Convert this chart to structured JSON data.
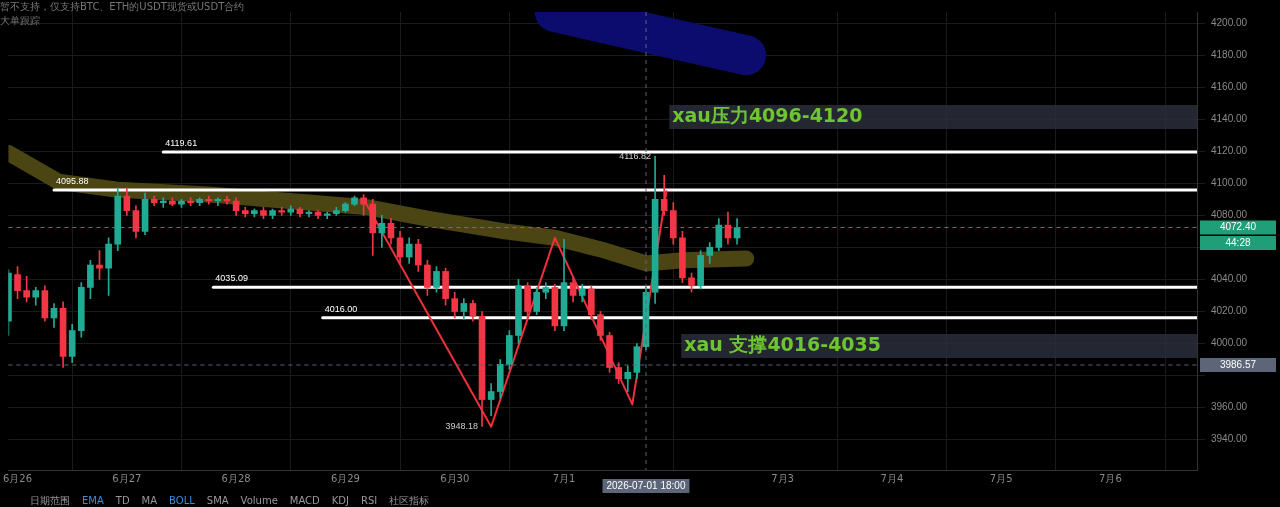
{
  "chart_data": {
    "type": "candlestick",
    "x": [
      "2026-06-25T22:00",
      "2026-06-26T00:00",
      "2026-06-26T02:00",
      "2026-06-26T04:00",
      "2026-06-26T06:00",
      "2026-06-26T08:00",
      "2026-06-26T10:00",
      "2026-06-26T12:00",
      "2026-06-26T14:00",
      "2026-06-26T16:00",
      "2026-06-26T18:00",
      "2026-06-26T20:00",
      "2026-06-26T22:00",
      "2026-06-27T00:00",
      "2026-06-27T02:00",
      "2026-06-27T04:00",
      "2026-06-27T06:00",
      "2026-06-27T08:00",
      "2026-06-27T10:00",
      "2026-06-27T12:00",
      "2026-06-27T14:00",
      "2026-06-27T16:00",
      "2026-06-27T18:00",
      "2026-06-27T20:00",
      "2026-06-27T22:00",
      "2026-06-28T00:00",
      "2026-06-28T02:00",
      "2026-06-28T04:00",
      "2026-06-28T06:00",
      "2026-06-28T08:00",
      "2026-06-28T10:00",
      "2026-06-28T12:00",
      "2026-06-28T14:00",
      "2026-06-28T16:00",
      "2026-06-28T18:00",
      "2026-06-28T20:00",
      "2026-06-28T22:00",
      "2026-06-29T00:00",
      "2026-06-29T02:00",
      "2026-06-29T04:00",
      "2026-06-29T06:00",
      "2026-06-29T08:00",
      "2026-06-29T10:00",
      "2026-06-29T12:00",
      "2026-06-29T14:00",
      "2026-06-29T16:00",
      "2026-06-29T18:00",
      "2026-06-29T20:00",
      "2026-06-29T22:00",
      "2026-06-30T00:00",
      "2026-06-30T02:00",
      "2026-06-30T04:00",
      "2026-06-30T06:00",
      "2026-06-30T08:00",
      "2026-06-30T10:00",
      "2026-06-30T12:00",
      "2026-06-30T14:00",
      "2026-06-30T16:00",
      "2026-06-30T18:00",
      "2026-06-30T20:00",
      "2026-06-30T22:00",
      "2026-07-01T00:00",
      "2026-07-01T02:00",
      "2026-07-01T04:00",
      "2026-07-01T06:00",
      "2026-07-01T08:00",
      "2026-07-01T10:00",
      "2026-07-01T12:00",
      "2026-07-01T14:00",
      "2026-07-01T16:00",
      "2026-07-01T18:00",
      "2026-07-01T20:00",
      "2026-07-01T22:00",
      "2026-07-02T00:00",
      "2026-07-02T02:00",
      "2026-07-02T04:00",
      "2026-07-02T06:00",
      "2026-07-02T08:00",
      "2026-07-02T10:00",
      "2026-07-02T12:00",
      "2026-07-02T14:00"
    ],
    "ohlc": [
      [
        4014,
        4046,
        4005,
        4044
      ],
      [
        4043,
        4048,
        4028,
        4033
      ],
      [
        4033,
        4042,
        4026,
        4029
      ],
      [
        4029,
        4035,
        4024,
        4033
      ],
      [
        4033,
        4036,
        4014,
        4016
      ],
      [
        4016,
        4025,
        4010,
        4022
      ],
      [
        4022,
        4026,
        3985,
        3992
      ],
      [
        3992,
        4012,
        3988,
        4008
      ],
      [
        4008,
        4038,
        4004,
        4035
      ],
      [
        4035,
        4052,
        4028,
        4049
      ],
      [
        4049,
        4058,
        4040,
        4047
      ],
      [
        4047,
        4066,
        4030,
        4062
      ],
      [
        4062,
        4097,
        4058,
        4092
      ],
      [
        4092,
        4097,
        4080,
        4083
      ],
      [
        4083,
        4086,
        4066,
        4070
      ],
      [
        4070,
        4094,
        4068,
        4090
      ],
      [
        4090,
        4092,
        4086,
        4088
      ],
      [
        4088,
        4091,
        4085,
        4089
      ],
      [
        4089,
        4091,
        4086,
        4087
      ],
      [
        4087,
        4090,
        4085,
        4089
      ],
      [
        4089,
        4091,
        4086,
        4088
      ],
      [
        4088,
        4091,
        4086,
        4090
      ],
      [
        4090,
        4092,
        4087,
        4089
      ],
      [
        4089,
        4091,
        4086,
        4090
      ],
      [
        4090,
        4092,
        4087,
        4089
      ],
      [
        4089,
        4091,
        4080,
        4083
      ],
      [
        4083,
        4085,
        4079,
        4081
      ],
      [
        4081,
        4084,
        4079,
        4083
      ],
      [
        4083,
        4085,
        4078,
        4080
      ],
      [
        4080,
        4084,
        4078,
        4083
      ],
      [
        4083,
        4085,
        4080,
        4082
      ],
      [
        4082,
        4086,
        4080,
        4084
      ],
      [
        4084,
        4085,
        4079,
        4081
      ],
      [
        4081,
        4083,
        4079,
        4082
      ],
      [
        4082,
        4083,
        4078,
        4080
      ],
      [
        4080,
        4082,
        4078,
        4081
      ],
      [
        4081,
        4085,
        4080,
        4083
      ],
      [
        4083,
        4088,
        4082,
        4087
      ],
      [
        4087,
        4092,
        4086,
        4091
      ],
      [
        4091,
        4093,
        4080,
        4087
      ],
      [
        4087,
        4090,
        4055,
        4069
      ],
      [
        4069,
        4080,
        4060,
        4075
      ],
      [
        4075,
        4078,
        4062,
        4066
      ],
      [
        4066,
        4070,
        4050,
        4054
      ],
      [
        4054,
        4066,
        4050,
        4062
      ],
      [
        4062,
        4065,
        4045,
        4049
      ],
      [
        4049,
        4052,
        4030,
        4035
      ],
      [
        4035,
        4048,
        4032,
        4045
      ],
      [
        4045,
        4047,
        4024,
        4028
      ],
      [
        4028,
        4032,
        4016,
        4020
      ],
      [
        4020,
        4028,
        4015,
        4025
      ],
      [
        4025,
        4027,
        4014,
        4017
      ],
      [
        4017,
        4020,
        3948.18,
        3965
      ],
      [
        3965,
        3975,
        3955,
        3970
      ],
      [
        3970,
        3990,
        3966,
        3987
      ],
      [
        3987,
        4008,
        3984,
        4005
      ],
      [
        4005,
        4040,
        4000,
        4036
      ],
      [
        4036,
        4038,
        4016,
        4020
      ],
      [
        4020,
        4035,
        4018,
        4032
      ],
      [
        4032,
        4038,
        4028,
        4035
      ],
      [
        4035,
        4037,
        4008,
        4011
      ],
      [
        4011,
        4065,
        4008,
        4038
      ],
      [
        4038,
        4041,
        4026,
        4030
      ],
      [
        4030,
        4037,
        4026,
        4034
      ],
      [
        4034,
        4036,
        4015,
        4018
      ],
      [
        4018,
        4020,
        4002,
        4005
      ],
      [
        4005,
        4007,
        3982,
        3985
      ],
      [
        3985,
        3988,
        3975,
        3978
      ],
      [
        3978,
        3986,
        3970,
        3982
      ],
      [
        3982,
        4000,
        3978,
        3998
      ],
      [
        3998,
        4035,
        3996,
        4032
      ],
      [
        4032,
        4116.82,
        4025,
        4090
      ],
      [
        4090,
        4105,
        4080,
        4083
      ],
      [
        4083,
        4088,
        4062,
        4066
      ],
      [
        4066,
        4070,
        4038,
        4041
      ],
      [
        4041,
        4044,
        4032,
        4036
      ],
      [
        4036,
        4058,
        4034,
        4055
      ],
      [
        4055,
        4063,
        4050,
        4060
      ],
      [
        4060,
        4078,
        4058,
        4074
      ],
      [
        4074,
        4082,
        4062,
        4066
      ],
      [
        4066,
        4078,
        4062,
        4072.4
      ]
    ],
    "series": [
      {
        "type": "line",
        "color": "#4a4512",
        "x": [
          "2026-06-25T22:00",
          "2026-06-26T09:00",
          "2026-06-26T22:00",
          "2026-06-27T18:00",
          "2026-06-28T16:00",
          "2026-06-29T05:00",
          "2026-06-29T18:00",
          "2026-06-30T11:00",
          "2026-06-30T22:00",
          "2026-07-01T09:00",
          "2026-07-01T18:00",
          "2026-07-02T02:00",
          "2026-07-02T16:00"
        ],
        "values": [
          4119,
          4101,
          4096,
          4093,
          4088,
          4085,
          4078,
          4070,
          4066,
          4058,
          4050,
          4052,
          4053
        ]
      },
      {
        "type": "line",
        "color": "#0c0c6e",
        "x": [
          "2026-06-30T22:00",
          "2026-07-01T18:00",
          "2026-07-02T16:00"
        ],
        "values": [
          4207,
          4194,
          4180
        ]
      },
      {
        "type": "line",
        "color": "#f0303a",
        "x": [
          "2026-06-29T04:00",
          "2026-06-30T08:00",
          "2026-06-30T22:00",
          "2026-07-01T15:00",
          "2026-07-01T22:30"
        ],
        "values": [
          4090,
          3948,
          4066,
          3962,
          4095
        ]
      },
      {
        "type": "line",
        "name": "4119.61",
        "color": "#ffffff",
        "x": [
          "2026-06-27T08:00",
          "2026-07-06T19:00"
        ],
        "values": [
          4119.61,
          4119.61
        ]
      },
      {
        "type": "line",
        "name": "4095.88",
        "color": "#ffffff",
        "x": [
          "2026-06-26T08:00",
          "2026-07-06T19:00"
        ],
        "values": [
          4095.88,
          4095.88
        ]
      },
      {
        "type": "line",
        "name": "4035.09",
        "color": "#ffffff",
        "x": [
          "2026-06-27T19:00",
          "2026-07-06T19:00"
        ],
        "values": [
          4035.09,
          4035.09
        ]
      },
      {
        "type": "line",
        "name": "4016.00",
        "color": "#ffffff",
        "x": [
          "2026-06-28T19:00",
          "2026-07-06T19:00"
        ],
        "values": [
          4016.0,
          4016.0
        ]
      }
    ],
    "xlim": [
      "2026-06-25T22:00",
      "2026-07-06T19:00"
    ],
    "ylim": [
      3921,
      4207
    ],
    "xticks": [
      {
        "value": "2026-06-26T00:00",
        "label": "6月26"
      },
      {
        "value": "2026-06-27T00:00",
        "label": "6月27"
      },
      {
        "value": "2026-06-28T00:00",
        "label": "6月28"
      },
      {
        "value": "2026-06-29T00:00",
        "label": "6月29"
      },
      {
        "value": "2026-06-30T00:00",
        "label": "6月30"
      },
      {
        "value": "2026-07-01T00:00",
        "label": "7月1"
      },
      {
        "value": "2026-07-03T00:00",
        "label": "7月3"
      },
      {
        "value": "2026-07-04T00:00",
        "label": "7月4"
      },
      {
        "value": "2026-07-05T00:00",
        "label": "7月5"
      },
      {
        "value": "2026-07-06T00:00",
        "label": "7月6"
      }
    ],
    "yticks": [
      {
        "value": 3940,
        "label": "3940.00"
      },
      {
        "value": 3960,
        "label": "3960.00"
      },
      {
        "value": 3980,
        "label": null
      },
      {
        "value": 4000,
        "label": "4000.00"
      },
      {
        "value": 4020,
        "label": "4020.00"
      },
      {
        "value": 4040,
        "label": "4040.00"
      },
      {
        "value": 4060,
        "label": null
      },
      {
        "value": 4080,
        "label": "4080.00"
      },
      {
        "value": 4100,
        "label": "4100.00"
      },
      {
        "value": 4120,
        "label": "4120.00"
      },
      {
        "value": 4140,
        "label": "4140.00"
      },
      {
        "value": 4160,
        "label": "4160.00"
      },
      {
        "value": 4180,
        "label": "4180.00"
      },
      {
        "value": 4200,
        "label": "4200.00"
      }
    ],
    "grid": true,
    "legend": false,
    "bands": [
      {
        "axis": "y",
        "from": 4134,
        "to": 4149,
        "label": "xau压力4096-4120",
        "color": "#2a2e39"
      },
      {
        "axis": "y",
        "from": 3991,
        "to": 4006,
        "label": "xau 支撑4016-4035",
        "color": "#2a2e39"
      }
    ],
    "ref_lines": [
      {
        "axis": "y",
        "value": 4072.4,
        "label": "4072.40",
        "color": "#1f9e78",
        "line_style": "dashed"
      },
      {
        "axis": "y",
        "value": 3986.57,
        "label": "3986.57",
        "color": "#5d6579",
        "line_style": "dashed"
      },
      {
        "axis": "x",
        "value": "2026-07-01T18:00",
        "label": "2026-07-01 18:00",
        "color": "#5d6579",
        "line_style": "dashed"
      }
    ],
    "annotations": [
      "暂不支持，仅支持BTC、ETH的USDT现货或USDT合约",
      "大单跟踪",
      "44:28",
      "日期范围",
      "EMA",
      "TD",
      "MA",
      "BOLL",
      "SMA",
      "Volume",
      "MACD",
      "KDJ",
      "RSI",
      "社区指标",
      {
        "text": "4116.82",
        "x": "2026-07-01T20:00",
        "y": 4116.82
      },
      {
        "text": "3948.18",
        "x": "2026-06-30T06:00",
        "y": 3948.18
      }
    ]
  }
}
